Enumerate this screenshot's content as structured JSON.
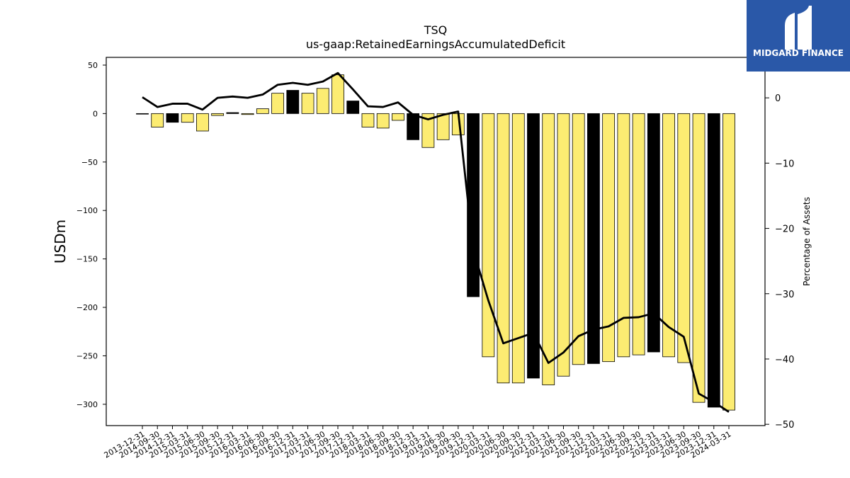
{
  "chart_data": {
    "type": "bar",
    "title": "TSQ",
    "subtitle": "us-gaap:RetainedEarningsAccumulatedDeficit",
    "ylabel": "USDm",
    "y2label": "Percentage of Assets",
    "ylim": [
      -322,
      58
    ],
    "y2lim": [
      -50.2,
      6.2
    ],
    "yticks": [
      50,
      0,
      -50,
      -100,
      -150,
      -200,
      -250,
      -300
    ],
    "y2ticks": [
      0,
      -10,
      -20,
      -30,
      -40,
      -50
    ],
    "categories": [
      "2013-12-31",
      "2014-09-30",
      "2014-12-31",
      "2015-03-31",
      "2015-06-30",
      "2015-09-30",
      "2015-12-31",
      "2016-03-31",
      "2016-06-30",
      "2016-09-30",
      "2016-12-31",
      "2017-03-31",
      "2017-06-30",
      "2017-09-30",
      "2017-12-31",
      "2018-03-31",
      "2018-06-30",
      "2018-09-30",
      "2018-12-31",
      "2019-03-31",
      "2019-06-30",
      "2019-09-30",
      "2019-12-31",
      "2020-03-31",
      "2020-06-30",
      "2020-09-30",
      "2020-12-31",
      "2021-03-31",
      "2021-06-30",
      "2021-09-30",
      "2021-12-31",
      "2022-03-31",
      "2022-06-30",
      "2022-09-30",
      "2022-12-31",
      "2023-03-31",
      "2023-06-30",
      "2023-09-30",
      "2023-12-31",
      "2024-03-31"
    ],
    "series": [
      {
        "type": "bar",
        "values": [
          0,
          -14,
          -9,
          -9,
          -18,
          -2,
          1,
          -1,
          5,
          21,
          24,
          21,
          26,
          40,
          13,
          -14,
          -15,
          -7,
          -27,
          -35,
          -27,
          -22,
          -189,
          -251,
          -278,
          -278,
          -273,
          -280,
          -271,
          -259,
          -258,
          -256,
          -251,
          -249,
          -246,
          -251,
          -257,
          -298,
          -303,
          -306
        ],
        "highlight": [
          false,
          false,
          true,
          false,
          false,
          false,
          true,
          false,
          false,
          false,
          true,
          false,
          false,
          false,
          true,
          false,
          false,
          false,
          true,
          false,
          false,
          false,
          true,
          false,
          false,
          false,
          true,
          false,
          false,
          false,
          true,
          false,
          false,
          false,
          true,
          false,
          false,
          false,
          true,
          false
        ]
      },
      {
        "type": "line",
        "values": [
          0.1,
          -1.4,
          -0.9,
          -0.9,
          -1.8,
          0,
          0.2,
          0,
          0.5,
          2.0,
          2.3,
          2.0,
          2.5,
          3.8,
          1.3,
          -1.3,
          -1.4,
          -0.7,
          -2.6,
          -3.3,
          -2.6,
          -2.1,
          -23.3,
          -31.0,
          -37.6,
          -36.8,
          -36.0,
          -40.6,
          -39.0,
          -36.5,
          -35.5,
          -35.0,
          -33.7,
          -33.6,
          -33.0,
          -35.1,
          -36.6,
          -45.3,
          -46.6,
          -48.1
        ]
      }
    ],
    "colors": {
      "bar": "#fcec72",
      "bar_highlight": "#000000",
      "line": "#000000"
    }
  },
  "logo": {
    "text": "MIDGARD FINANCE"
  }
}
